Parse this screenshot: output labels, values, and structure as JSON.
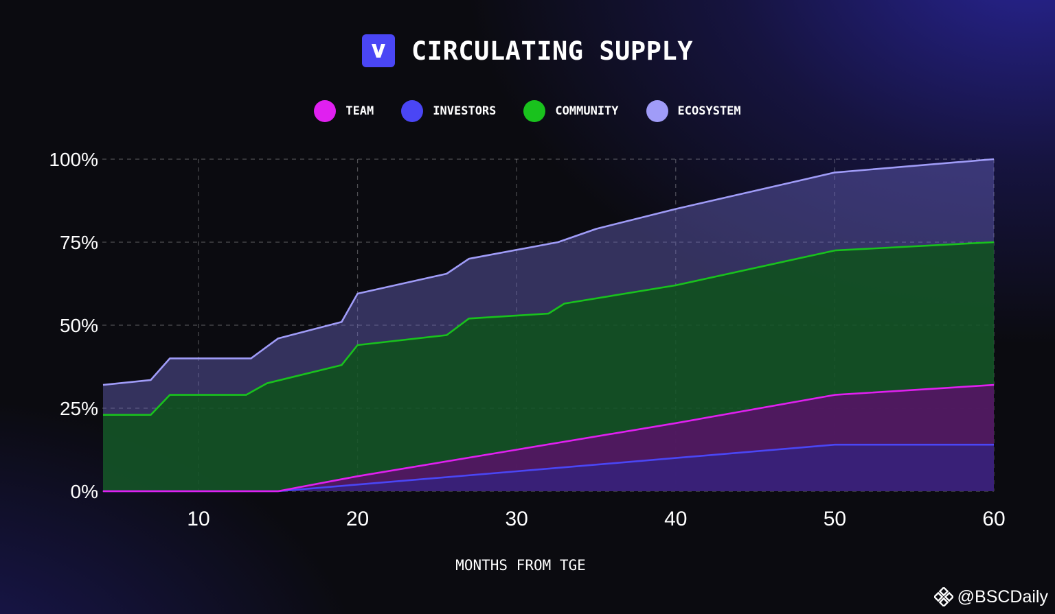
{
  "header": {
    "title": "CIRCULATING SUPPLY"
  },
  "colors": {
    "team": "#e020f0",
    "investors": "#4a46f5",
    "community": "#19c21d",
    "ecosystem": "#a09cf8"
  },
  "watermark": {
    "text": "@BSCDaily"
  },
  "chart_data": {
    "type": "area",
    "stacked": true,
    "xlabel": "MONTHS FROM TGE",
    "ylabel": "",
    "xlim": [
      4,
      60
    ],
    "ylim": [
      0,
      100
    ],
    "x_ticks": [
      10,
      20,
      30,
      40,
      50,
      60
    ],
    "y_ticks": [
      0,
      25,
      50,
      75,
      100
    ],
    "y_tick_labels": [
      "0%",
      "25%",
      "50%",
      "75%",
      "100%"
    ],
    "grid": true,
    "legend_position": "top-center",
    "series": [
      {
        "name": "INVESTORS",
        "color": "#4a46f5",
        "points": [
          [
            4,
            0
          ],
          [
            15,
            0
          ],
          [
            20,
            2
          ],
          [
            30,
            6
          ],
          [
            40,
            10
          ],
          [
            50,
            14
          ],
          [
            60,
            14
          ]
        ]
      },
      {
        "name": "TEAM",
        "color": "#e020f0",
        "points": [
          [
            4,
            0
          ],
          [
            15,
            0
          ],
          [
            20,
            4.5
          ],
          [
            30,
            12.5
          ],
          [
            40,
            20.5
          ],
          [
            50,
            29
          ],
          [
            60,
            32
          ]
        ]
      },
      {
        "name": "COMMUNITY",
        "color": "#19c21d",
        "points": [
          [
            4,
            23
          ],
          [
            7,
            23
          ],
          [
            8.2,
            29
          ],
          [
            13,
            29
          ],
          [
            14.3,
            32.5
          ],
          [
            19,
            38
          ],
          [
            20,
            44
          ],
          [
            25.6,
            47
          ],
          [
            27,
            52
          ],
          [
            32,
            53.5
          ],
          [
            33,
            56.5
          ],
          [
            40,
            62
          ],
          [
            50,
            72.5
          ],
          [
            60,
            75
          ]
        ]
      },
      {
        "name": "ECOSYSTEM",
        "color": "#a09cf8",
        "points": [
          [
            4,
            32
          ],
          [
            7,
            33.5
          ],
          [
            8.2,
            40
          ],
          [
            13.3,
            40
          ],
          [
            15,
            46
          ],
          [
            19,
            51
          ],
          [
            20,
            59.5
          ],
          [
            25.6,
            65.5
          ],
          [
            27,
            70
          ],
          [
            32.6,
            75
          ],
          [
            35,
            79
          ],
          [
            40,
            85
          ],
          [
            50,
            96
          ],
          [
            60,
            100
          ]
        ]
      }
    ]
  }
}
